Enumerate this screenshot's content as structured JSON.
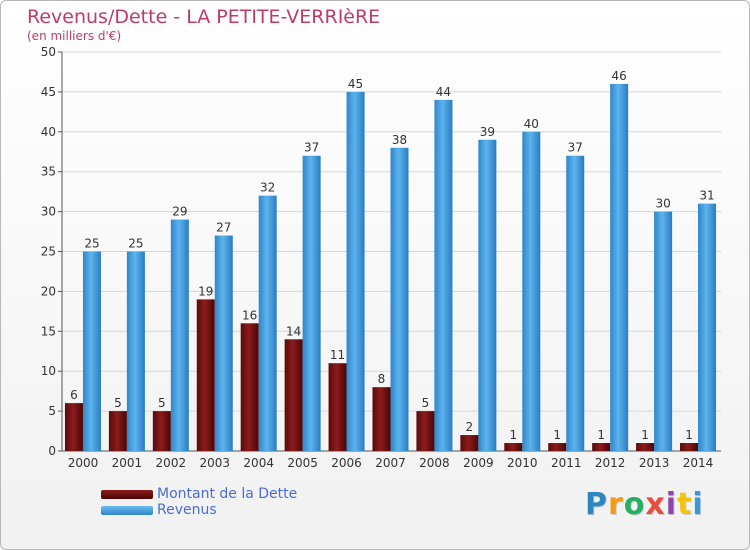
{
  "title": "Revenus/Dette - LA PETITE-VERRIèRE",
  "subtitle": "(en milliers d'€)",
  "logo": {
    "letters": [
      "P",
      "r",
      "o",
      "x",
      "i",
      "t",
      "i"
    ],
    "colors": [
      "#2e86c1",
      "#f39c12",
      "#27ae60",
      "#e74c3c",
      "#8e44ad",
      "#f1c40f",
      "#3498db"
    ]
  },
  "chart_data": {
    "type": "bar",
    "categories": [
      "2000",
      "2001",
      "2002",
      "2003",
      "2004",
      "2005",
      "2006",
      "2007",
      "2008",
      "2009",
      "2010",
      "2011",
      "2012",
      "2013",
      "2014"
    ],
    "series": [
      {
        "name": "Montant de la Dette",
        "values": [
          6,
          5,
          5,
          19,
          16,
          14,
          11,
          8,
          5,
          2,
          1,
          1,
          1,
          1,
          1
        ],
        "color": "#7a1010"
      },
      {
        "name": "Revenus",
        "values": [
          25,
          25,
          29,
          27,
          32,
          37,
          45,
          38,
          44,
          39,
          40,
          37,
          46,
          30,
          31
        ],
        "color": "#4aa3e3"
      }
    ],
    "yticks": [
      "0",
      "5",
      "10",
      "15",
      "20",
      "25",
      "30",
      "35",
      "40",
      "45",
      "50"
    ],
    "ylim": [
      0,
      50
    ],
    "grid": true,
    "legend_position": "bottom-left"
  }
}
